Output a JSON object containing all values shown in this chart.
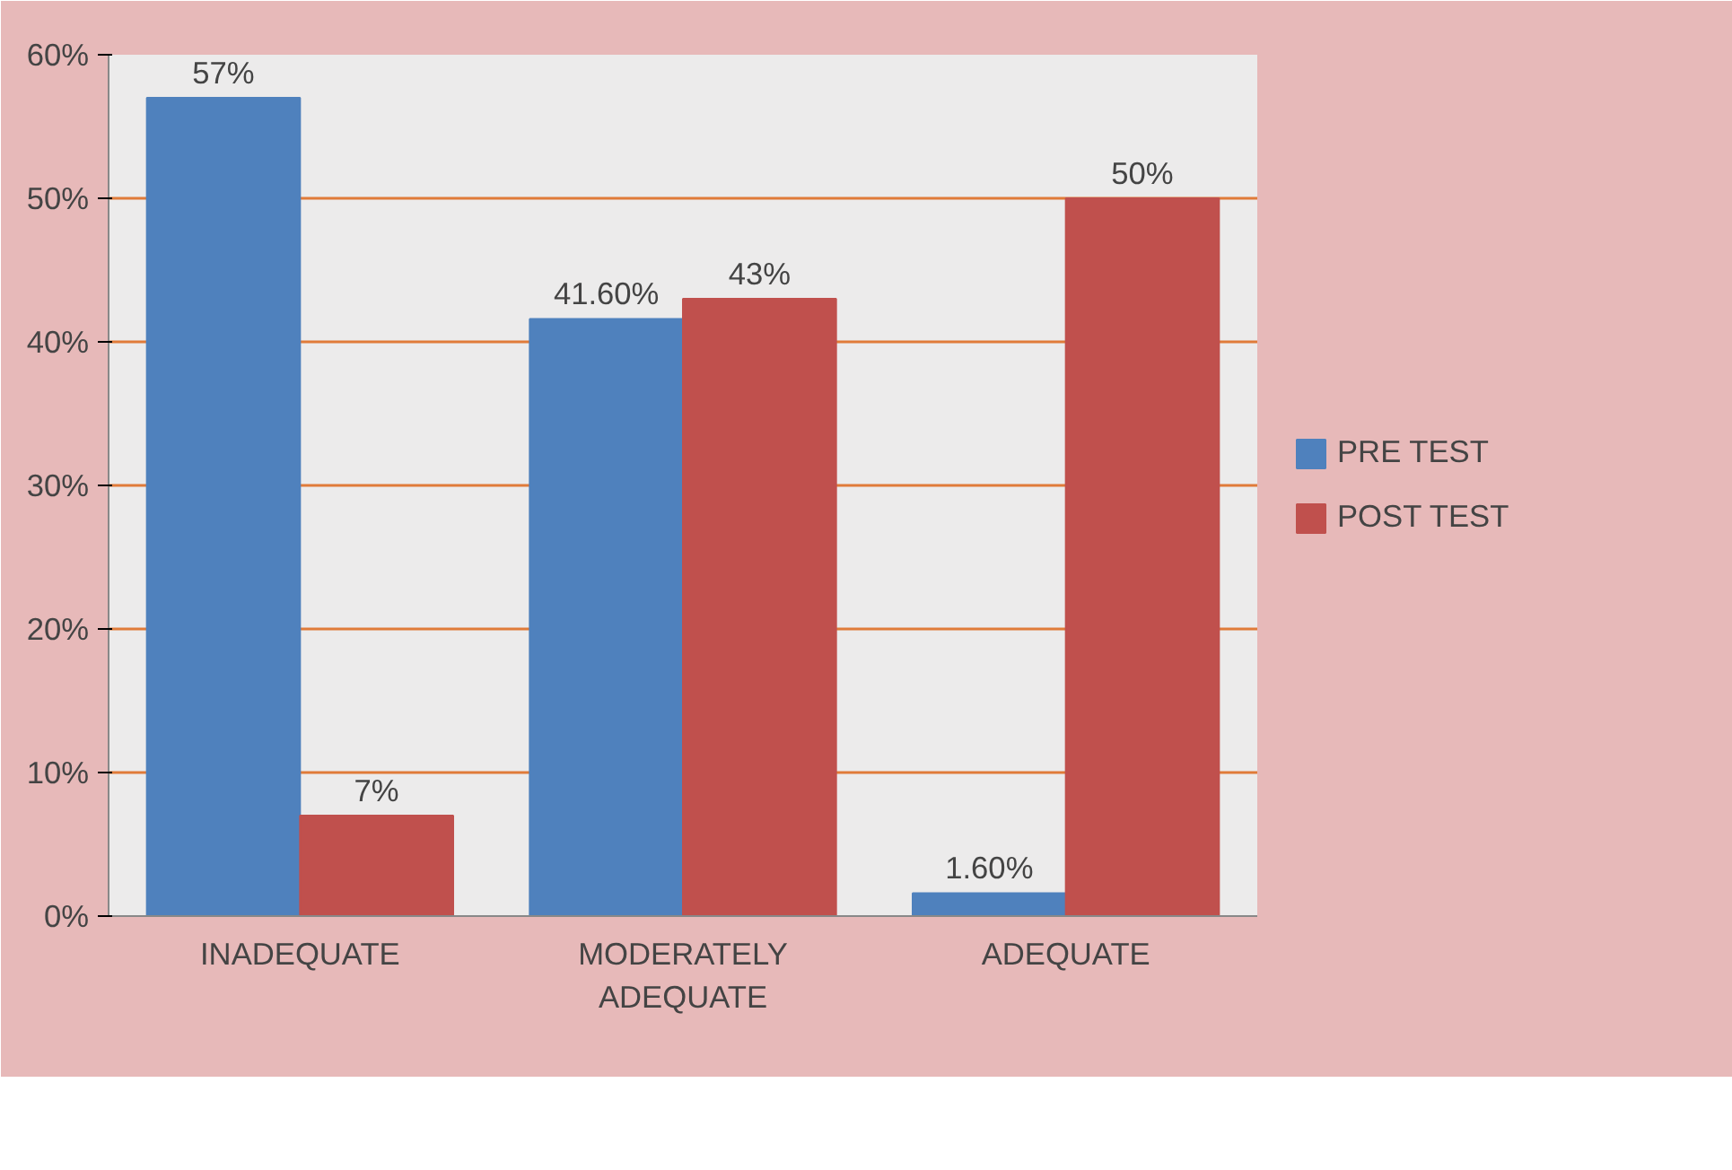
{
  "chart_data": {
    "type": "bar",
    "categories": [
      "INADEQUATE",
      "MODERATELY ADEQUATE",
      "ADEQUATE"
    ],
    "series": [
      {
        "name": "PRE TEST",
        "color": "#4f81bd",
        "values": [
          57,
          41.6,
          1.6
        ],
        "value_labels": [
          "57%",
          "41.60%",
          "1.60%"
        ]
      },
      {
        "name": "POST TEST",
        "color": "#c0504d",
        "values": [
          7,
          43,
          50
        ],
        "value_labels": [
          "7%",
          "43%",
          "50%"
        ]
      }
    ],
    "ylim": [
      0,
      60
    ],
    "yticks": [
      {
        "value": 0,
        "label": "0%"
      },
      {
        "value": 10,
        "label": "10%"
      },
      {
        "value": 20,
        "label": "20%"
      },
      {
        "value": 30,
        "label": "30%"
      },
      {
        "value": 40,
        "label": "40%"
      },
      {
        "value": 50,
        "label": "50%"
      },
      {
        "value": 60,
        "label": "60%"
      }
    ],
    "grid": "y",
    "legend": "right"
  }
}
